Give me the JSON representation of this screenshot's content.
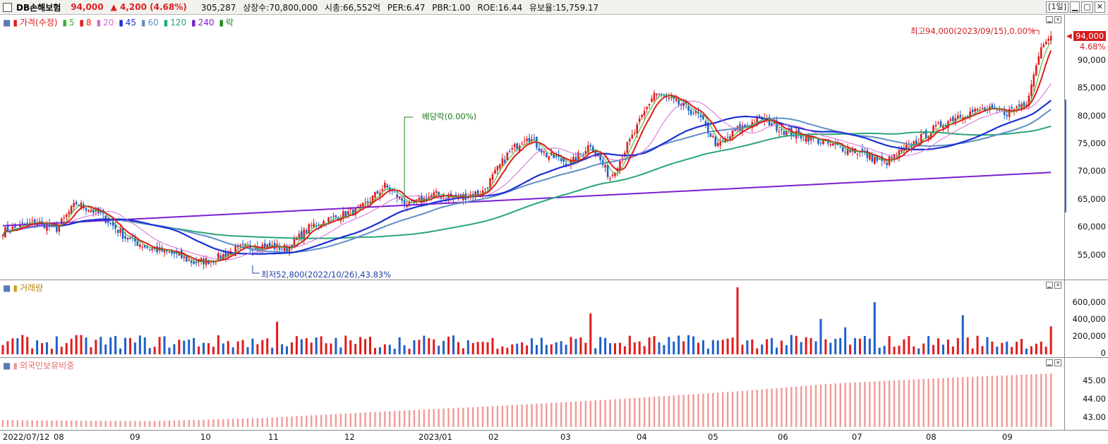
{
  "header": {
    "stock_name": "DB손해보험",
    "price": "94,000",
    "change": "▲ 4,200",
    "change_pct": "(4.68%)",
    "volume": "305,287",
    "listed": "상장수:70,800,000",
    "mktcap": "시총:66,552억",
    "per": "PER:6.47",
    "pbr": "PBR:1.00",
    "roe": "ROE:16.44",
    "float": "유보율:15,759.17",
    "period": "[1일]"
  },
  "price_panel": {
    "legend": {
      "price": "가격(수정)",
      "ma5": "5",
      "ma8": "8",
      "ma20": "20",
      "ma45": "45",
      "ma60": "60",
      "ma120": "120",
      "ma240": "240",
      "ex": "락"
    },
    "y_ticks": [
      "90,000",
      "85,000",
      "80,000",
      "75,000",
      "70,000",
      "65,000",
      "60,000",
      "55,000"
    ],
    "last_price": "94,000",
    "last_pct": "4.68%",
    "high_annotation": "최고94,000(2023/09/15),0.00%",
    "low_annotation": "최저52,800(2022/10/26),43.83%",
    "dividend_annotation": "배당락(0.00%)"
  },
  "volume_panel": {
    "legend": "거래량",
    "y_ticks": [
      "600,000",
      "400,000",
      "200,000",
      "0"
    ]
  },
  "foreign_panel": {
    "legend": "외국인보유비중",
    "y_ticks": [
      "45.00",
      "44.00",
      "43.00"
    ]
  },
  "x_labels": [
    "2022/07/12",
    "08",
    "09",
    "10",
    "11",
    "12",
    "2023/01",
    "02",
    "03",
    "04",
    "05",
    "06",
    "07",
    "08",
    "09"
  ],
  "colors": {
    "up": "#e01b1b",
    "down": "#1f5fc8",
    "ma5": "#34b234",
    "ma8": "#e01b1b",
    "ma20": "#d56bd5",
    "ma45": "#1a2fd6",
    "ma60": "#5f8fc4",
    "ma120": "#2aa57b",
    "ma240": "#7b1fd0",
    "foreign": "#f29a9a"
  },
  "chart_data": {
    "type": "candlestick",
    "ylim": [
      51500,
      96500
    ],
    "anchors": [
      [
        0,
        59500
      ],
      [
        8,
        60500
      ],
      [
        14,
        61200
      ],
      [
        22,
        60000
      ],
      [
        30,
        64500
      ],
      [
        40,
        62500
      ],
      [
        50,
        58500
      ],
      [
        60,
        56500
      ],
      [
        70,
        55500
      ],
      [
        78,
        54000
      ],
      [
        86,
        54500
      ],
      [
        96,
        56500
      ],
      [
        106,
        57000
      ],
      [
        116,
        56500
      ],
      [
        126,
        60500
      ],
      [
        136,
        62000
      ],
      [
        146,
        63500
      ],
      [
        156,
        67500
      ],
      [
        166,
        64000
      ],
      [
        176,
        66000
      ],
      [
        186,
        65500
      ],
      [
        196,
        66500
      ],
      [
        206,
        73000
      ],
      [
        214,
        76500
      ],
      [
        222,
        73000
      ],
      [
        232,
        71500
      ],
      [
        240,
        75000
      ],
      [
        248,
        69000
      ],
      [
        258,
        77000
      ],
      [
        266,
        84000
      ],
      [
        276,
        82000
      ],
      [
        284,
        80000
      ],
      [
        292,
        74500
      ],
      [
        300,
        77500
      ],
      [
        310,
        79500
      ],
      [
        320,
        77000
      ],
      [
        330,
        76000
      ],
      [
        340,
        74500
      ],
      [
        350,
        73500
      ],
      [
        360,
        71500
      ],
      [
        370,
        74500
      ],
      [
        380,
        77500
      ],
      [
        390,
        80000
      ],
      [
        400,
        81000
      ],
      [
        410,
        80500
      ],
      [
        418,
        82500
      ],
      [
        424,
        92000
      ],
      [
        428,
        94000
      ]
    ],
    "annual_dividend_index": 164,
    "vol_ylim": [
      0,
      720000
    ],
    "vol_spikes": [
      [
        300,
        720000
      ],
      [
        356,
        560000
      ],
      [
        335,
        380000
      ],
      [
        241,
        440000
      ],
      [
        112,
        350000
      ],
      [
        392,
        420000
      ],
      [
        344,
        290000
      ],
      [
        428,
        300000
      ]
    ],
    "foreign_ylim": [
      42.6,
      45.8
    ],
    "foreign_anchors": [
      [
        0,
        42.95
      ],
      [
        20,
        42.93
      ],
      [
        60,
        42.9
      ],
      [
        105,
        43.05
      ],
      [
        150,
        43.35
      ],
      [
        200,
        43.65
      ],
      [
        250,
        44.0
      ],
      [
        300,
        44.4
      ],
      [
        340,
        44.8
      ],
      [
        380,
        45.05
      ],
      [
        428,
        45.3
      ]
    ]
  }
}
